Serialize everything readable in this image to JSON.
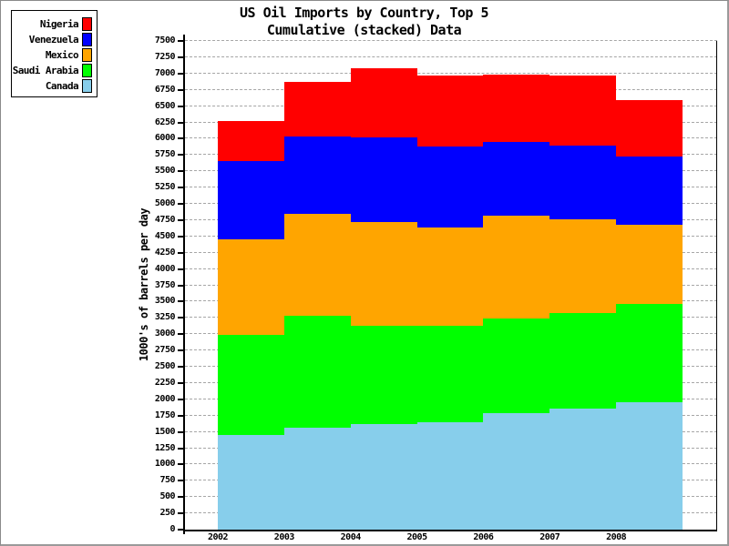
{
  "title": {
    "line1": "US Oil Imports by Country, Top 5",
    "line2": "Cumulative (stacked) Data"
  },
  "legend": {
    "items": [
      {
        "label": "Nigeria",
        "color": "#ff0000"
      },
      {
        "label": "Venezuela",
        "color": "#0000ff"
      },
      {
        "label": "Mexico",
        "color": "#ffa500"
      },
      {
        "label": "Saudi Arabia",
        "color": "#00ff00"
      },
      {
        "label": "Canada",
        "color": "#87ceeb"
      }
    ]
  },
  "y_axis": {
    "label": "1000's of barrels per day",
    "min": 0,
    "max": 7500,
    "tick_step": 250,
    "tick_labels": [
      "0",
      "250",
      "500",
      "750",
      "1000",
      "1250",
      "1500",
      "1750",
      "2000",
      "2250",
      "2500",
      "2750",
      "3000",
      "3250",
      "3500",
      "3750",
      "4000",
      "4250",
      "4500",
      "4750",
      "5000",
      "5250",
      "5500",
      "5750",
      "6000",
      "6250",
      "6500",
      "6750",
      "7000",
      "7250",
      "7500"
    ]
  },
  "x_axis": {
    "labels": [
      "2002",
      "2003",
      "2004",
      "2005",
      "2006",
      "2007",
      "2008"
    ]
  },
  "chart_data": {
    "type": "area",
    "stacked": true,
    "title": "US Oil Imports by Country, Top 5 - Cumulative (stacked) Data",
    "xlabel": "",
    "ylabel": "1000's of barrels per day",
    "ylim": [
      0,
      7500
    ],
    "grid": "horizontal dashed lines every 250, hidden behind areas",
    "legend_position": "outside top-left",
    "categories": [
      "2002",
      "2003",
      "2004",
      "2005",
      "2006",
      "2007",
      "2008"
    ],
    "series_bottom_to_top": [
      {
        "name": "Canada",
        "color": "#87ceeb",
        "values": [
          1450,
          1570,
          1615,
          1650,
          1790,
          1860,
          1950
        ]
      },
      {
        "name": "Saudi Arabia",
        "color": "#00ff00",
        "values": [
          1535,
          1710,
          1520,
          1475,
          1445,
          1460,
          1510
        ]
      },
      {
        "name": "Mexico",
        "color": "#ffa500",
        "values": [
          1475,
          1565,
          1585,
          1515,
          1585,
          1440,
          1225
        ]
      },
      {
        "name": "Venezuela",
        "color": "#0000ff",
        "values": [
          1190,
          1190,
          1300,
          1240,
          1130,
          1135,
          1035
        ]
      },
      {
        "name": "Nigeria",
        "color": "#ff0000",
        "values": [
          615,
          830,
          1065,
          1085,
          1040,
          1070,
          875
        ]
      }
    ],
    "stacked_totals": [
      6265,
      6865,
      7085,
      6965,
      6990,
      6965,
      6595
    ]
  },
  "colors": {
    "grid": "#a6a6a6",
    "axis": "#000000",
    "background": "#ffffff",
    "frame": "#9a9a9a"
  }
}
